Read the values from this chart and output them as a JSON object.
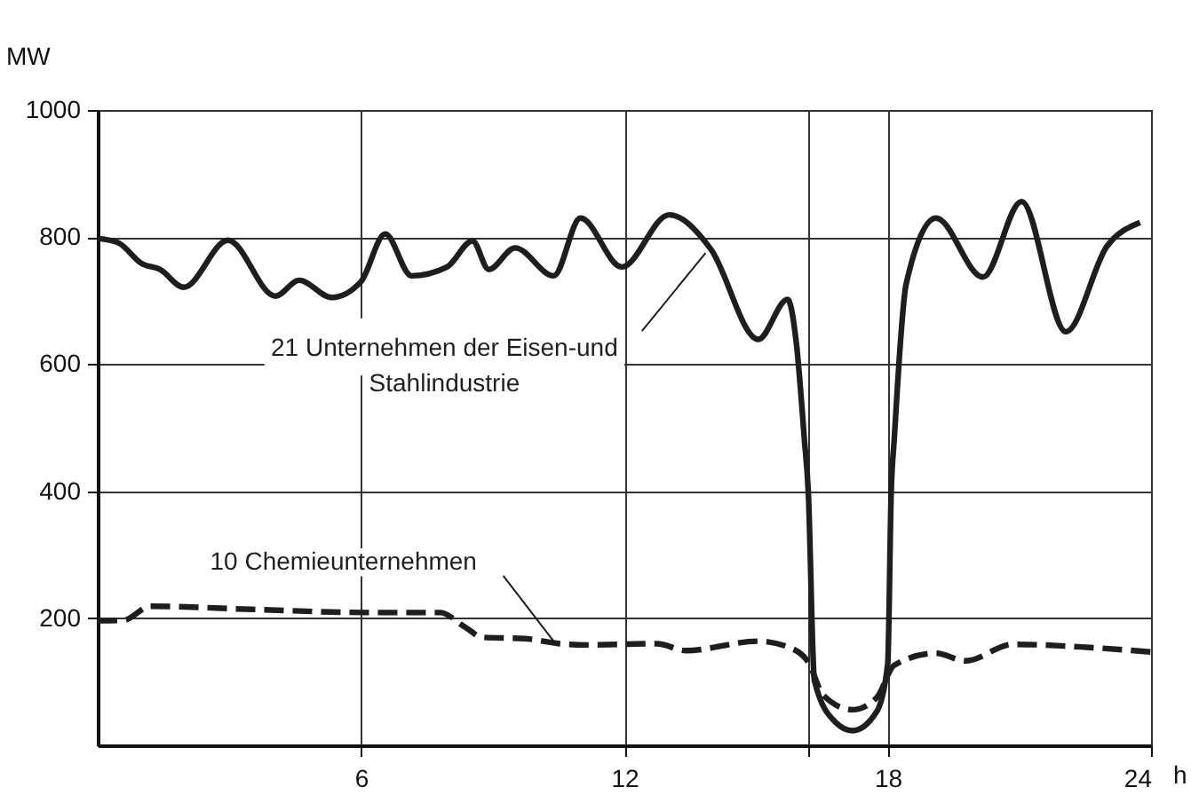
{
  "chart_data": {
    "type": "line",
    "xlabel": "h",
    "ylabel": "MW",
    "xlim": [
      0,
      24
    ],
    "ylim": [
      0,
      1000
    ],
    "xticks": [
      6,
      12,
      {
        "value": 16.2,
        "label": null
      },
      18,
      24
    ],
    "yticks": [
      200,
      400,
      600,
      800,
      1000
    ],
    "grid": true,
    "series": [
      {
        "name": "21 Unternehmen der Eisen-und Stahlindustrie",
        "color": "#1e1e1e",
        "line_style": "solid",
        "x": [
          0,
          0.47,
          1.01,
          1.42,
          1.96,
          2.97,
          4.05,
          4.59,
          5.33,
          6.0,
          6.55,
          7.15,
          7.96,
          8.54,
          8.91,
          9.51,
          10.39,
          11.0,
          11.94,
          13.02,
          13.97,
          15.05,
          15.72,
          15.92,
          16.1,
          16.19,
          16.33,
          16.8,
          17.2,
          17.75,
          18.0,
          18.08,
          18.15,
          18.42,
          19.1,
          20.17,
          21.05,
          22.06,
          23.0,
          23.75
        ],
        "values": [
          798,
          791,
          758,
          749,
          721,
          795,
          707,
          732,
          705,
          730,
          805,
          739,
          753,
          794,
          749,
          783,
          739,
          830,
          753,
          835,
          781,
          639,
          702,
          632,
          483,
          400,
          102,
          37,
          23,
          53,
          128,
          400,
          483,
          726,
          830,
          737,
          856,
          651,
          786,
          823
        ]
      },
      {
        "name": "10 Chemieunternehmen",
        "color": "#1e1e1e",
        "line_style": "dashed",
        "x": [
          0,
          0.6,
          1.2,
          3.5,
          6.2,
          7.8,
          8.37,
          8.77,
          9.72,
          10.53,
          11.13,
          12.75,
          13.4,
          15.05,
          15.72,
          16.19,
          16.53,
          17.2,
          17.75,
          18.15,
          19.1,
          19.77,
          20.85,
          22.6,
          24.0
        ],
        "values": [
          196,
          197,
          219,
          214,
          209,
          209,
          186,
          170,
          168,
          160,
          158,
          160,
          149,
          164,
          155,
          131,
          79,
          56,
          75,
          126,
          145,
          133,
          159,
          154,
          147
        ]
      }
    ]
  }
}
